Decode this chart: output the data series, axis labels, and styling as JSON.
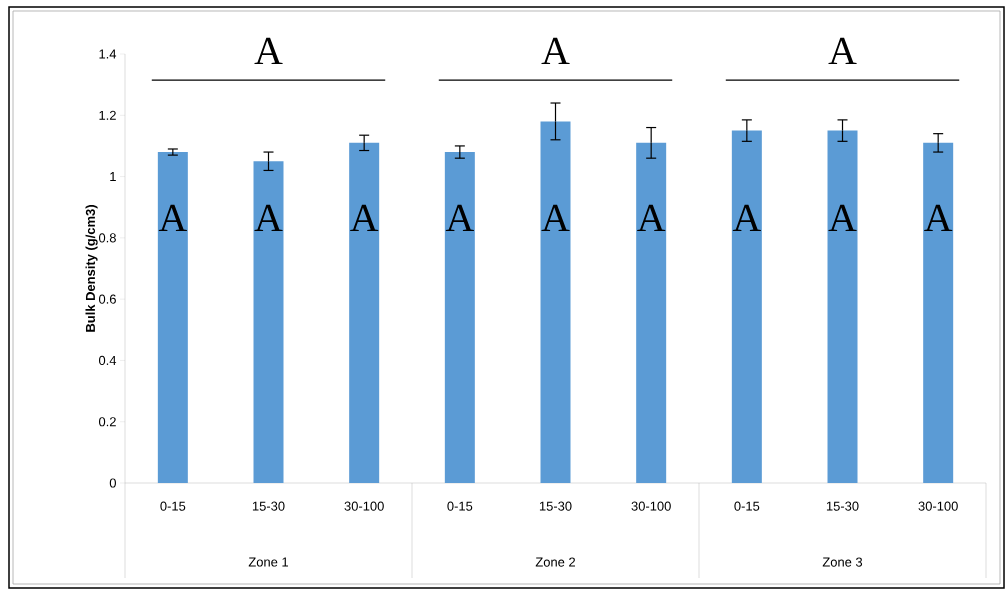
{
  "chart_data": {
    "type": "bar",
    "categories": [
      "0-15",
      "15-30",
      "30-100",
      "0-15",
      "15-30",
      "30-100",
      "0-15",
      "15-30",
      "30-100"
    ],
    "values": [
      1.08,
      1.05,
      1.11,
      1.08,
      1.18,
      1.11,
      1.15,
      1.15,
      1.11
    ],
    "errors": [
      0.01,
      0.03,
      0.025,
      0.02,
      0.06,
      0.05,
      0.035,
      0.035,
      0.03
    ],
    "color": "#5b9bd5",
    "ylabel": "Bulk Density (g/cm3)",
    "ylim": [
      0,
      1.4
    ],
    "yticks": [
      0,
      0.2,
      0.4,
      0.6,
      0.8,
      1,
      1.2,
      1.4
    ],
    "annotations": [
      "A",
      "A",
      "A",
      "A",
      "A",
      "A",
      "A",
      "A",
      "A",
      "A",
      "A",
      "A",
      "Zone 1",
      "Zone 2",
      "Zone 3"
    ]
  }
}
